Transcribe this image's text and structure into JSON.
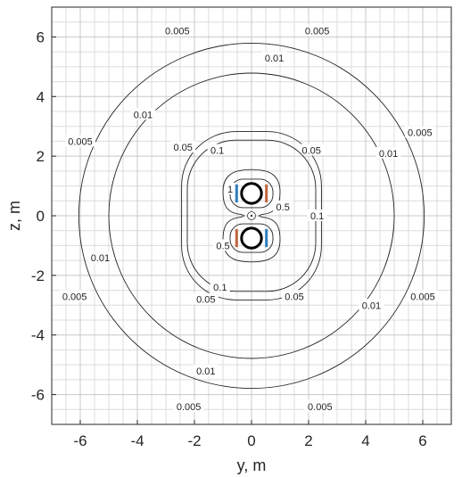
{
  "chart_data": {
    "type": "contour",
    "xlabel": "y, m",
    "ylabel": "z, m",
    "xlim": [
      -7,
      7
    ],
    "ylim": [
      -7,
      7
    ],
    "xticks": [
      -6,
      -4,
      -2,
      0,
      2,
      4,
      6
    ],
    "yticks": [
      -6,
      -4,
      -2,
      0,
      2,
      4,
      6
    ],
    "xtick_labels": [
      "-6",
      "-4",
      "-2",
      "0",
      "2",
      "4",
      "6"
    ],
    "ytick_labels": [
      "-6",
      "-4",
      "-2",
      "0",
      "2",
      "4",
      "6"
    ],
    "grid": "on",
    "minor_grid": "on",
    "minor_grid_step": 0.5,
    "contour_levels": [
      {
        "level": 0.005,
        "label": "0.005",
        "shape": "circle",
        "radius": 6.05,
        "label_positions": [
          [
            -2.6,
            6.2
          ],
          [
            2.3,
            6.2
          ],
          [
            -6.0,
            2.5
          ],
          [
            5.9,
            2.8
          ],
          [
            -6.2,
            -2.7
          ],
          [
            6.0,
            -2.7
          ],
          [
            -2.2,
            -6.4
          ],
          [
            2.4,
            -6.4
          ]
        ]
      },
      {
        "level": 0.01,
        "label": "0.01",
        "shape": "circle",
        "radius": 5.0,
        "label_positions": [
          [
            0.8,
            5.3
          ],
          [
            -3.8,
            3.4
          ],
          [
            4.8,
            2.1
          ],
          [
            -5.3,
            -1.4
          ],
          [
            4.2,
            -3.0
          ],
          [
            -1.6,
            -5.2
          ]
        ]
      },
      {
        "level": 0.05,
        "label": "0.05",
        "shape": "rounded",
        "rx": 2.45,
        "ry": 2.95,
        "corner": 1.9,
        "label_positions": [
          [
            -2.4,
            2.3
          ],
          [
            2.1,
            2.2
          ],
          [
            -1.6,
            -2.8
          ],
          [
            1.5,
            -2.7
          ]
        ]
      },
      {
        "level": 0.1,
        "label": "0.1",
        "shape": "rounded",
        "rx": 2.25,
        "ry": 2.65,
        "corner": 1.7,
        "label_positions": [
          [
            -1.2,
            2.2
          ],
          [
            2.3,
            0.0
          ],
          [
            -1.1,
            -2.4
          ]
        ]
      },
      {
        "level": 0.5,
        "label": "0.5",
        "shape": "double-loop",
        "label_positions": [
          [
            1.1,
            0.3
          ],
          [
            -1.0,
            -1.0
          ]
        ]
      },
      {
        "level": 1,
        "label": "1",
        "shape": "double-loop-inner",
        "label_positions": [
          [
            -0.75,
            0.9
          ]
        ]
      }
    ],
    "sources": [
      {
        "y": 0,
        "z": 0.75,
        "radius": 0.35,
        "left_color": "#2f7dbb",
        "right_color": "#c0643b"
      },
      {
        "y": 0,
        "z": -0.75,
        "radius": 0.35,
        "left_color": "#c0643b",
        "right_color": "#2f7dbb"
      }
    ],
    "center_marker": {
      "y": 0,
      "z": 0,
      "symbol": "dot-in-circle"
    }
  }
}
